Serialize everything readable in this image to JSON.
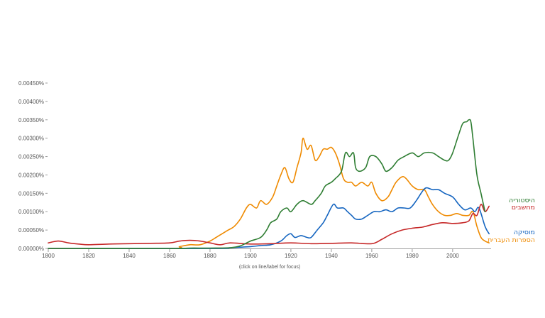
{
  "chart_data": {
    "type": "line",
    "xlim": [
      1800,
      2019
    ],
    "ylim": [
      0,
      0.0045
    ],
    "x_ticks": [
      1800,
      1820,
      1840,
      1860,
      1880,
      1900,
      1920,
      1940,
      1960,
      1980,
      2000
    ],
    "y_ticks": [
      "0.00000%",
      "0.00050%",
      "0.00100%",
      "0.00150%",
      "0.00200%",
      "0.00250%",
      "0.00300%",
      "0.00350%",
      "0.00400%",
      "0.00450%"
    ],
    "grid": false,
    "note": "(click on line/label for focus)",
    "series": [
      {
        "name": "היסטוריה",
        "color": "#2e7d32",
        "points": [
          [
            1800,
            0
          ],
          [
            1860,
            0
          ],
          [
            1870,
            1e-05
          ],
          [
            1880,
            1e-05
          ],
          [
            1890,
            2e-05
          ],
          [
            1895,
            7e-05
          ],
          [
            1900,
            0.0002
          ],
          [
            1905,
            0.0003
          ],
          [
            1908,
            0.0005
          ],
          [
            1910,
            0.0007
          ],
          [
            1913,
            0.0008
          ],
          [
            1915,
            0.001
          ],
          [
            1918,
            0.0011
          ],
          [
            1920,
            0.001
          ],
          [
            1923,
            0.0012
          ],
          [
            1926,
            0.0013
          ],
          [
            1930,
            0.0012
          ],
          [
            1932,
            0.0013
          ],
          [
            1935,
            0.0015
          ],
          [
            1937,
            0.0017
          ],
          [
            1940,
            0.0018
          ],
          [
            1942,
            0.0019
          ],
          [
            1945,
            0.0021
          ],
          [
            1947,
            0.0026
          ],
          [
            1949,
            0.0025
          ],
          [
            1951,
            0.0026
          ],
          [
            1952,
            0.0022
          ],
          [
            1954,
            0.0021
          ],
          [
            1957,
            0.0022
          ],
          [
            1959,
            0.0025
          ],
          [
            1962,
            0.0025
          ],
          [
            1965,
            0.0023
          ],
          [
            1967,
            0.0021
          ],
          [
            1970,
            0.0022
          ],
          [
            1973,
            0.0024
          ],
          [
            1976,
            0.0025
          ],
          [
            1980,
            0.0026
          ],
          [
            1983,
            0.0025
          ],
          [
            1986,
            0.0026
          ],
          [
            1990,
            0.0026
          ],
          [
            1993,
            0.0025
          ],
          [
            1996,
            0.0024
          ],
          [
            1998,
            0.0024
          ],
          [
            2000,
            0.0026
          ],
          [
            2003,
            0.0031
          ],
          [
            2005,
            0.0034
          ],
          [
            2007,
            0.00345
          ],
          [
            2008,
            0.0035
          ],
          [
            2009,
            0.00345
          ],
          [
            2010,
            0.003
          ],
          [
            2012,
            0.002
          ],
          [
            2014,
            0.0015
          ],
          [
            2016,
            0.001
          ]
        ]
      },
      {
        "name": "מחשבים",
        "color": "#c62828",
        "points": [
          [
            1800,
            0.00015
          ],
          [
            1805,
            0.0002
          ],
          [
            1810,
            0.00015
          ],
          [
            1815,
            0.00012
          ],
          [
            1820,
            0.0001
          ],
          [
            1830,
            0.00012
          ],
          [
            1840,
            0.00013
          ],
          [
            1850,
            0.00014
          ],
          [
            1860,
            0.00015
          ],
          [
            1865,
            0.0002
          ],
          [
            1870,
            0.00022
          ],
          [
            1875,
            0.0002
          ],
          [
            1880,
            0.00015
          ],
          [
            1885,
            0.0001
          ],
          [
            1890,
            0.00015
          ],
          [
            1900,
            0.00012
          ],
          [
            1910,
            0.00013
          ],
          [
            1920,
            0.00015
          ],
          [
            1930,
            0.00013
          ],
          [
            1940,
            0.00014
          ],
          [
            1950,
            0.00015
          ],
          [
            1960,
            0.00013
          ],
          [
            1965,
            0.00025
          ],
          [
            1970,
            0.0004
          ],
          [
            1975,
            0.0005
          ],
          [
            1980,
            0.00055
          ],
          [
            1985,
            0.00058
          ],
          [
            1990,
            0.00065
          ],
          [
            1995,
            0.0007
          ],
          [
            2000,
            0.00068
          ],
          [
            2005,
            0.0007
          ],
          [
            2008,
            0.00075
          ],
          [
            2010,
            0.00095
          ],
          [
            2012,
            0.0009
          ],
          [
            2014,
            0.0012
          ],
          [
            2016,
            0.001
          ],
          [
            2018,
            0.00115
          ]
        ]
      },
      {
        "name": "מוסיקה",
        "color": "#1565c0",
        "points": [
          [
            1800,
            0
          ],
          [
            1880,
            0
          ],
          [
            1890,
            2e-05
          ],
          [
            1900,
            5e-05
          ],
          [
            1905,
            8e-05
          ],
          [
            1910,
            0.0001
          ],
          [
            1915,
            0.0002
          ],
          [
            1918,
            0.00035
          ],
          [
            1920,
            0.0004
          ],
          [
            1922,
            0.0003
          ],
          [
            1925,
            0.00035
          ],
          [
            1928,
            0.0003
          ],
          [
            1930,
            0.0003
          ],
          [
            1933,
            0.0005
          ],
          [
            1936,
            0.0007
          ],
          [
            1938,
            0.0009
          ],
          [
            1941,
            0.0012
          ],
          [
            1943,
            0.0011
          ],
          [
            1946,
            0.0011
          ],
          [
            1948,
            0.001
          ],
          [
            1950,
            0.0009
          ],
          [
            1952,
            0.0008
          ],
          [
            1955,
            0.0008
          ],
          [
            1958,
            0.0009
          ],
          [
            1961,
            0.001
          ],
          [
            1964,
            0.001
          ],
          [
            1967,
            0.00105
          ],
          [
            1970,
            0.001
          ],
          [
            1973,
            0.0011
          ],
          [
            1976,
            0.0011
          ],
          [
            1979,
            0.0011
          ],
          [
            1982,
            0.0013
          ],
          [
            1985,
            0.00155
          ],
          [
            1987,
            0.00165
          ],
          [
            1990,
            0.0016
          ],
          [
            1993,
            0.0016
          ],
          [
            1996,
            0.0015
          ],
          [
            2000,
            0.0014
          ],
          [
            2003,
            0.0012
          ],
          [
            2006,
            0.00105
          ],
          [
            2009,
            0.0011
          ],
          [
            2011,
            0.001
          ],
          [
            2013,
            0.0011
          ],
          [
            2016,
            0.0006
          ],
          [
            2018,
            0.0004
          ]
        ]
      },
      {
        "name": "הספרות העברית",
        "color": "#ef8a00",
        "points": [
          [
            1800,
            0
          ],
          [
            1860,
            0
          ],
          [
            1865,
            5e-05
          ],
          [
            1870,
            0.0001
          ],
          [
            1875,
            0.0001
          ],
          [
            1880,
            0.0002
          ],
          [
            1883,
            0.0003
          ],
          [
            1886,
            0.0004
          ],
          [
            1889,
            0.0005
          ],
          [
            1892,
            0.0006
          ],
          [
            1895,
            0.0008
          ],
          [
            1898,
            0.0011
          ],
          [
            1900,
            0.0012
          ],
          [
            1903,
            0.0011
          ],
          [
            1905,
            0.0013
          ],
          [
            1908,
            0.0012
          ],
          [
            1911,
            0.0014
          ],
          [
            1913,
            0.0017
          ],
          [
            1915,
            0.002
          ],
          [
            1917,
            0.0022
          ],
          [
            1919,
            0.0019
          ],
          [
            1921,
            0.0018
          ],
          [
            1923,
            0.0022
          ],
          [
            1925,
            0.0026
          ],
          [
            1926,
            0.003
          ],
          [
            1928,
            0.0027
          ],
          [
            1930,
            0.0028
          ],
          [
            1932,
            0.0024
          ],
          [
            1934,
            0.0025
          ],
          [
            1936,
            0.0027
          ],
          [
            1938,
            0.0027
          ],
          [
            1940,
            0.00275
          ],
          [
            1942,
            0.0026
          ],
          [
            1944,
            0.0023
          ],
          [
            1946,
            0.0019
          ],
          [
            1948,
            0.0018
          ],
          [
            1950,
            0.0018
          ],
          [
            1952,
            0.0017
          ],
          [
            1955,
            0.0018
          ],
          [
            1958,
            0.0017
          ],
          [
            1960,
            0.0018
          ],
          [
            1962,
            0.0015
          ],
          [
            1965,
            0.0013
          ],
          [
            1968,
            0.0014
          ],
          [
            1970,
            0.0016
          ],
          [
            1972,
            0.0018
          ],
          [
            1975,
            0.00195
          ],
          [
            1977,
            0.0019
          ],
          [
            1980,
            0.0017
          ],
          [
            1983,
            0.0016
          ],
          [
            1986,
            0.0016
          ],
          [
            1988,
            0.0014
          ],
          [
            1990,
            0.0012
          ],
          [
            1993,
            0.001
          ],
          [
            1996,
            0.0009
          ],
          [
            1999,
            0.0009
          ],
          [
            2002,
            0.00095
          ],
          [
            2005,
            0.0009
          ],
          [
            2008,
            0.0009
          ],
          [
            2010,
            0.001
          ],
          [
            2012,
            0.0006
          ],
          [
            2014,
            0.0003
          ],
          [
            2016,
            0.0002
          ],
          [
            2018,
            0.00015
          ]
        ]
      }
    ]
  }
}
